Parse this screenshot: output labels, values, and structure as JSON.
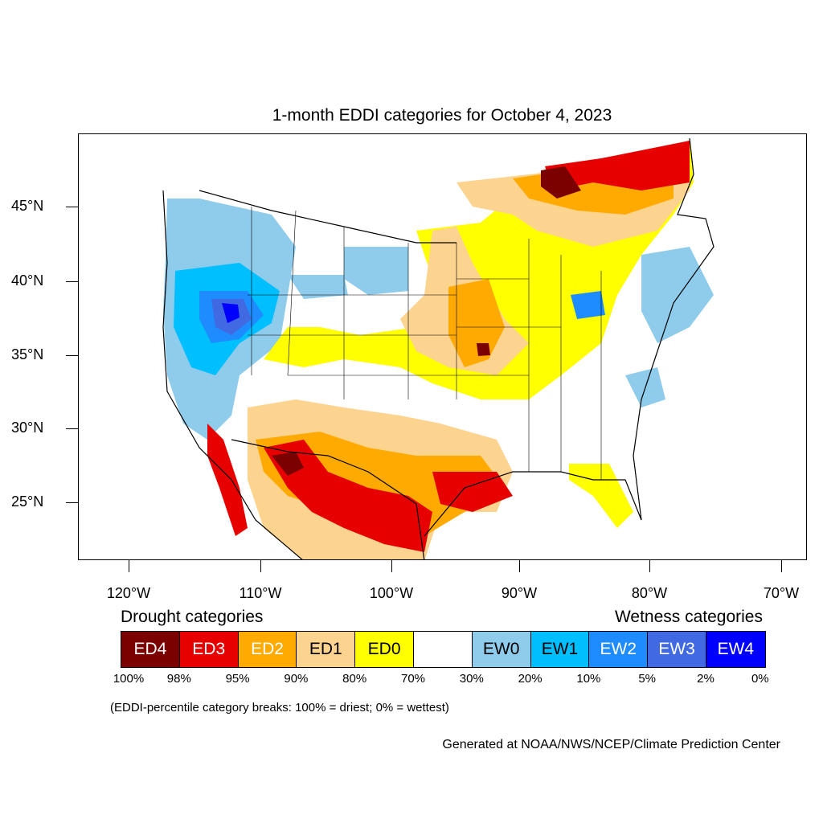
{
  "title": "1-month EDDI categories for October 4, 2023",
  "lat_labels": [
    "45°N",
    "40°N",
    "35°N",
    "30°N",
    "25°N"
  ],
  "lon_labels": [
    "120°W",
    "110°W",
    "100°W",
    "90°W",
    "80°W",
    "70°W"
  ],
  "legend": {
    "drought_heading": "Drought categories",
    "wetness_heading": "Wetness categories",
    "categories": [
      {
        "label": "ED4",
        "color": "#7b0000",
        "text_color": "#ffffff"
      },
      {
        "label": "ED3",
        "color": "#e60000",
        "text_color": "#ffffff"
      },
      {
        "label": "ED2",
        "color": "#ffaa00",
        "text_color": "#ffffff"
      },
      {
        "label": "ED1",
        "color": "#fcd38f",
        "text_color": "#000000"
      },
      {
        "label": "ED0",
        "color": "#ffff00",
        "text_color": "#000000"
      },
      {
        "label": "",
        "color": "#ffffff",
        "text_color": "#000000"
      },
      {
        "label": "EW0",
        "color": "#8fcbeb",
        "text_color": "#000000"
      },
      {
        "label": "EW1",
        "color": "#00bfff",
        "text_color": "#000000"
      },
      {
        "label": "EW2",
        "color": "#1e8cff",
        "text_color": "#ffffff"
      },
      {
        "label": "EW3",
        "color": "#4169e1",
        "text_color": "#ffffff"
      },
      {
        "label": "EW4",
        "color": "#0000ff",
        "text_color": "#ffffff"
      }
    ],
    "percentiles": [
      "100%",
      "98%",
      "95%",
      "90%",
      "80%",
      "70%",
      "30%",
      "20%",
      "10%",
      "5%",
      "2%",
      "0%"
    ]
  },
  "note": "(EDDI-percentile category breaks: 100% = driest; 0% = wettest)",
  "credit": "Generated at NOAA/NWS/NCEP/Climate Prediction Center"
}
